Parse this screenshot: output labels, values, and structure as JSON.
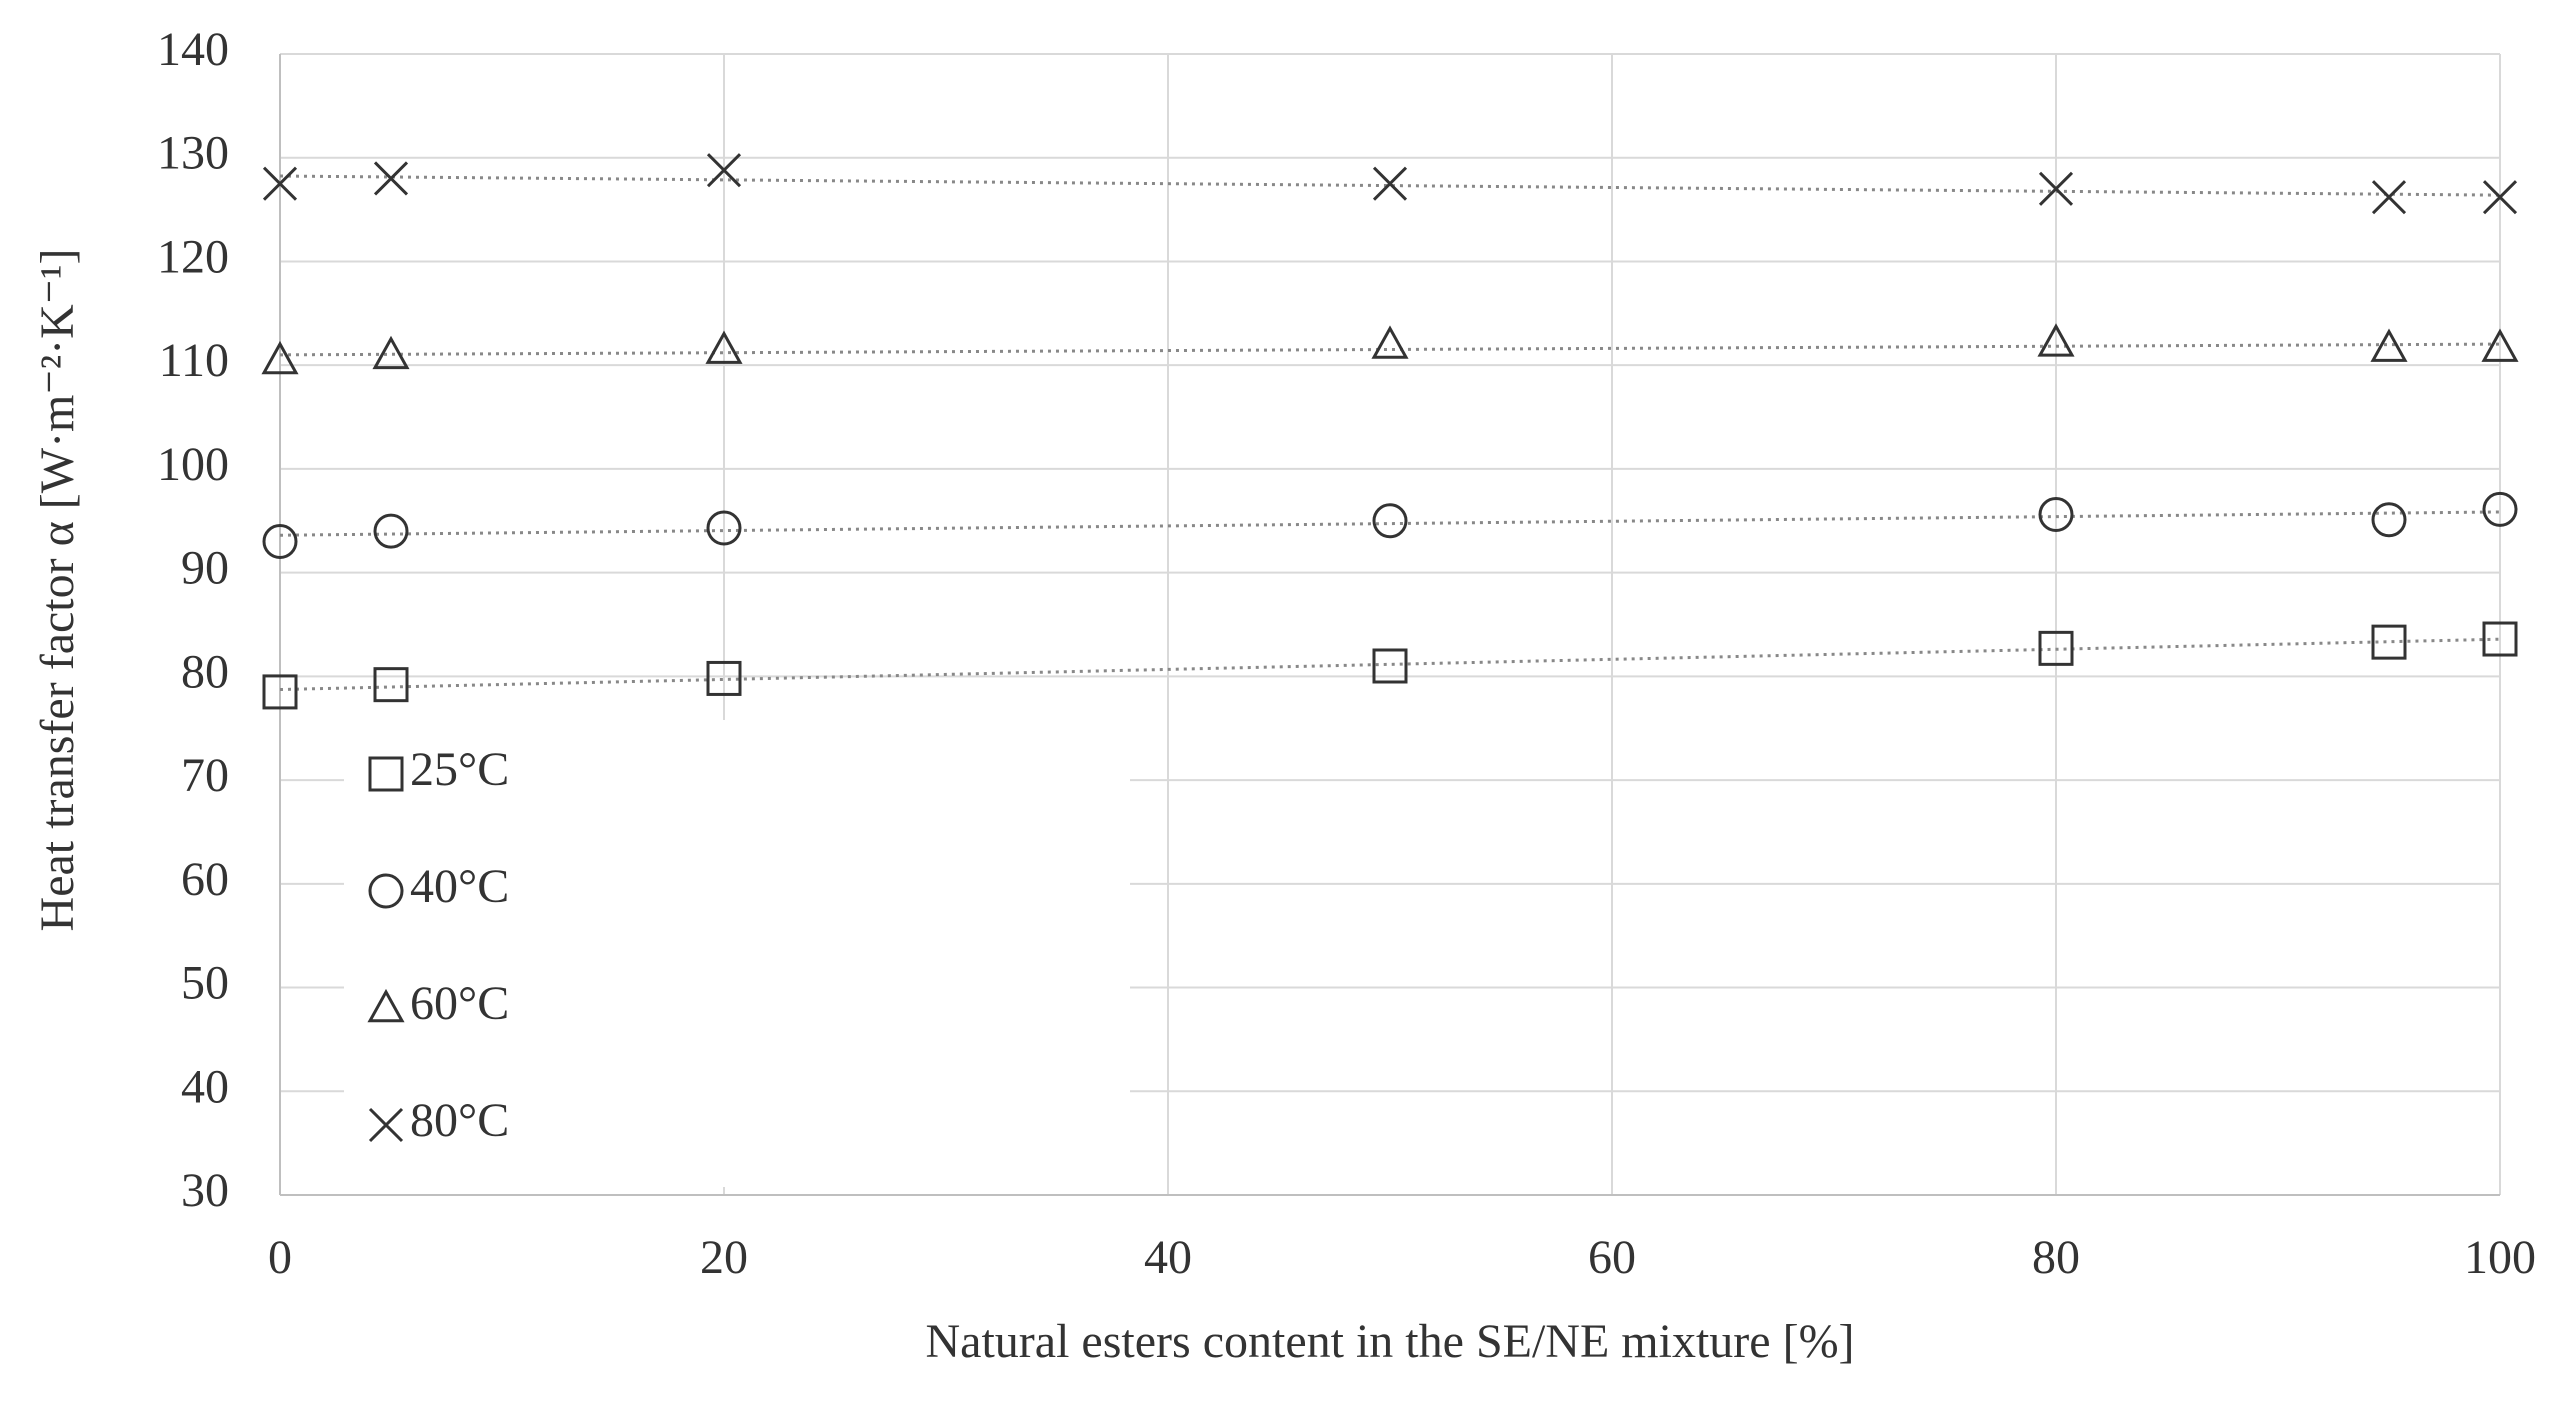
{
  "chart_data": {
    "type": "scatter",
    "xlabel": "Natural esters content in the SE/NE mixture [%]",
    "ylabel": "Heat transfer factor  α [W·m⁻²·K⁻¹]",
    "x": [
      0,
      5,
      20,
      50,
      80,
      95,
      100
    ],
    "series": [
      {
        "name": "25°C",
        "color": "#333333",
        "marker": "square",
        "values": [
          78.5,
          79.2,
          79.8,
          81,
          82.7,
          83.3,
          83.6
        ]
      },
      {
        "name": "40°C",
        "color": "#333333",
        "marker": "circle",
        "values": [
          93,
          94,
          94.3,
          95,
          95.6,
          95.1,
          96.1
        ]
      },
      {
        "name": "60°C",
        "color": "#333333",
        "marker": "triangle",
        "values": [
          110.5,
          111,
          111.5,
          112,
          112.2,
          111.7,
          111.7
        ]
      },
      {
        "name": "80°C",
        "color": "#333333",
        "marker": "x",
        "values": [
          127.5,
          128,
          128.8,
          127.5,
          127,
          126.2,
          126.2
        ]
      }
    ],
    "xlim": [
      0,
      100
    ],
    "xticks": [
      0,
      20,
      40,
      60,
      80,
      100
    ],
    "ylim": [
      30,
      140
    ],
    "yticks": [
      30,
      40,
      50,
      60,
      70,
      80,
      90,
      100,
      110,
      120,
      130,
      140
    ],
    "grid": true,
    "trendline": "linear",
    "legend": "lower left"
  }
}
